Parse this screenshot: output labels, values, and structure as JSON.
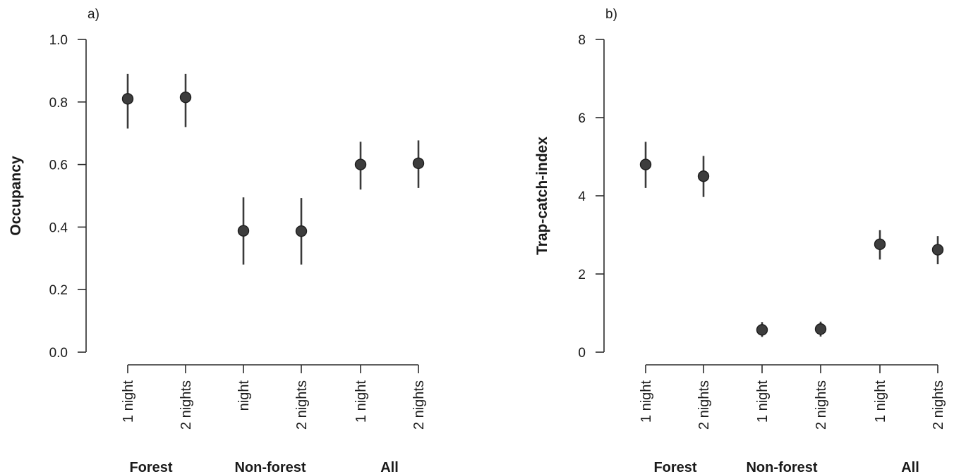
{
  "chart_data": [
    {
      "type": "scatter",
      "panel_label": "a)",
      "xlabel": "",
      "ylabel": "Occupancy",
      "ylim": [
        0,
        1.0
      ],
      "yticks": [
        "0.0",
        "0.2",
        "0.4",
        "0.6",
        "0.8",
        "1.0"
      ],
      "categories": [
        "1 night",
        "2 nights",
        "night",
        "2 nights",
        "1 night",
        "2 nights"
      ],
      "groups": [
        "Forest",
        "Non-forest",
        "All"
      ],
      "values": [
        0.81,
        0.815,
        0.388,
        0.387,
        0.6,
        0.604
      ],
      "lower": [
        0.715,
        0.72,
        0.28,
        0.28,
        0.52,
        0.525
      ],
      "upper": [
        0.89,
        0.89,
        0.495,
        0.493,
        0.673,
        0.677
      ],
      "grid": false
    },
    {
      "type": "scatter",
      "panel_label": "b)",
      "xlabel": "",
      "ylabel": "Trap-catch-index",
      "ylim": [
        0,
        8
      ],
      "yticks": [
        "0",
        "2",
        "4",
        "6",
        "8"
      ],
      "categories": [
        "1 night",
        "2 nights",
        "1 night",
        "2 nights",
        "1 night",
        "2 nights"
      ],
      "groups": [
        "Forest",
        "Non-forest",
        "All"
      ],
      "values": [
        4.8,
        4.5,
        0.57,
        0.59,
        2.76,
        2.62
      ],
      "lower": [
        4.2,
        3.97,
        0.39,
        0.4,
        2.37,
        2.25
      ],
      "upper": [
        5.38,
        5.02,
        0.77,
        0.78,
        3.12,
        2.97
      ],
      "grid": false
    }
  ],
  "colors": {
    "point": "#3d3d3d",
    "line": "#2b2b2b"
  }
}
